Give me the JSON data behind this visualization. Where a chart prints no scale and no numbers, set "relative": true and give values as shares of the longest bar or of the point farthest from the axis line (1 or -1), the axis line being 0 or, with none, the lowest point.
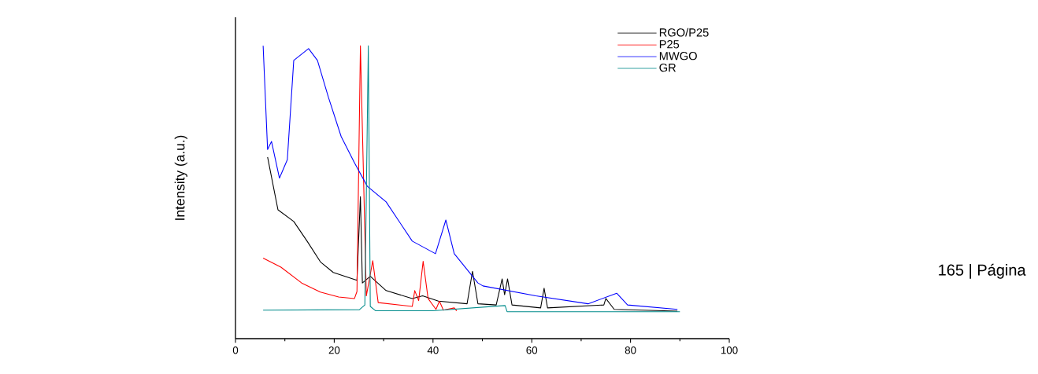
{
  "chart_data": {
    "type": "line",
    "ylabel": "Intensity (a.u.)",
    "relative": true,
    "xlim": [
      0,
      100
    ],
    "xticks": [
      0,
      20,
      40,
      60,
      80,
      100
    ],
    "legend": "top right",
    "grid": false,
    "annotations": [
      "165 | Página"
    ],
    "series": [
      {
        "name": "RGO/P25",
        "color": "#000000",
        "x": [
          6.5,
          8.6,
          11.8,
          14.5,
          17.2,
          19.8,
          24.6,
          25.3,
          25.7,
          27.3,
          30.5,
          35.8,
          37.9,
          41.1,
          46.9,
          48.0,
          49.1,
          52.8,
          54.0,
          54.5,
          55.1,
          56.0,
          61.8,
          62.5,
          63.2,
          74.6,
          75.0,
          76.7,
          89.5
        ],
        "values": [
          0.62,
          0.44,
          0.4,
          0.333,
          0.262,
          0.226,
          0.199,
          0.485,
          0.19,
          0.213,
          0.164,
          0.137,
          0.146,
          0.128,
          0.119,
          0.23,
          0.119,
          0.115,
          0.204,
          0.15,
          0.204,
          0.115,
          0.105,
          0.172,
          0.105,
          0.115,
          0.137,
          0.1,
          0.094
        ]
      },
      {
        "name": "P25",
        "color": "#ff0000",
        "x": [
          5.6,
          9.2,
          13.4,
          17.2,
          20.9,
          24.1,
          24.6,
          25.3,
          26.5,
          27.8,
          28.9,
          35.8,
          36.3,
          37.1,
          38.0,
          39.0,
          40.6,
          41.3,
          42.1,
          44.3,
          44.8
        ],
        "values": [
          0.275,
          0.244,
          0.19,
          0.159,
          0.142,
          0.137,
          0.161,
          1.0,
          0.146,
          0.266,
          0.123,
          0.11,
          0.164,
          0.13,
          0.264,
          0.137,
          0.1,
          0.128,
          0.097,
          0.105,
          0.095
        ]
      },
      {
        "name": "MWGO",
        "color": "#0000ff",
        "x": [
          5.6,
          6.5,
          7.3,
          8.9,
          10.5,
          11.8,
          14.8,
          16.6,
          18.8,
          21.4,
          24.1,
          26.7,
          30.5,
          35.8,
          40.5,
          42.6,
          44.3,
          49.1,
          50.1,
          60.8,
          71.4,
          77.2,
          79.4,
          89.5
        ],
        "values": [
          1.0,
          0.646,
          0.673,
          0.548,
          0.611,
          0.95,
          0.99,
          0.95,
          0.825,
          0.69,
          0.6,
          0.52,
          0.467,
          0.333,
          0.29,
          0.405,
          0.29,
          0.19,
          0.18,
          0.146,
          0.119,
          0.155,
          0.115,
          0.1
        ]
      },
      {
        "name": "GR",
        "color": "#008b8b",
        "x": [
          5.6,
          25.1,
          26.2,
          26.9,
          27.3,
          28.4,
          40.0,
          54.6,
          55.0,
          90.0
        ],
        "values": [
          0.097,
          0.099,
          0.115,
          1.0,
          0.11,
          0.095,
          0.095,
          0.113,
          0.092,
          0.092
        ]
      }
    ]
  }
}
